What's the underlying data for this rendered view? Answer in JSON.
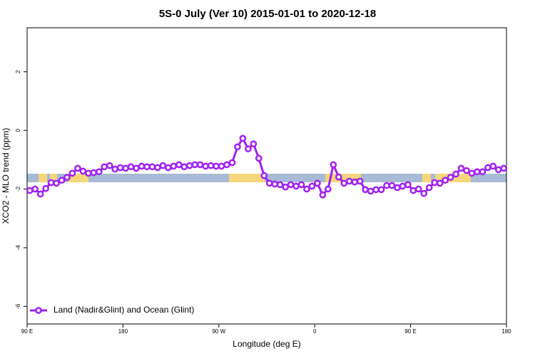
{
  "chart_data": {
    "type": "line",
    "title": "5S-0 July (Ver 10)   2015-01-01 to 2020-12-18",
    "x_label": "Longitude (deg E)",
    "y_label": "XCO2 - MLO trend (ppm)",
    "x": [
      92.5,
      97.5,
      102.5,
      107.5,
      112.5,
      117.5,
      122.5,
      127.5,
      132.5,
      137.5,
      142.5,
      147.5,
      152.5,
      157.5,
      162.5,
      167.5,
      172.5,
      177.5,
      182.5,
      187.5,
      192.5,
      197.5,
      202.5,
      207.5,
      212.5,
      217.5,
      222.5,
      227.5,
      232.5,
      237.5,
      242.5,
      247.5,
      252.5,
      257.5,
      262.5,
      267.5,
      272.5,
      277.5,
      282.5,
      287.5,
      292.5,
      297.5,
      302.5,
      307.5,
      312.5,
      317.5,
      322.5,
      327.5,
      332.5,
      337.5,
      342.5,
      347.5,
      352.5,
      357.5,
      362.5,
      367.5,
      372.5,
      377.5,
      382.5,
      387.5,
      392.5,
      397.5,
      402.5,
      407.5,
      412.5,
      417.5,
      422.5,
      427.5,
      432.5,
      437.5,
      442.5,
      447.5,
      452.5,
      457.5,
      462.5,
      467.5,
      472.5,
      477.5,
      482.5,
      487.5,
      492.5,
      497.5,
      502.5,
      507.5,
      512.5,
      517.5,
      522.5,
      527.5,
      532.5,
      537.5
    ],
    "series": [
      {
        "name": "Land (Nadir&Glint) and Ocean (Glint)",
        "color": "#a020f0",
        "values": [
          -2.05,
          -2.0,
          -2.17,
          -1.98,
          -1.78,
          -1.8,
          -1.7,
          -1.6,
          -1.46,
          -1.29,
          -1.39,
          -1.46,
          -1.44,
          -1.41,
          -1.24,
          -1.2,
          -1.32,
          -1.27,
          -1.29,
          -1.24,
          -1.29,
          -1.22,
          -1.24,
          -1.24,
          -1.27,
          -1.2,
          -1.27,
          -1.22,
          -1.17,
          -1.24,
          -1.2,
          -1.17,
          -1.17,
          -1.22,
          -1.2,
          -1.22,
          -1.22,
          -1.17,
          -1.1,
          -0.56,
          -0.27,
          -0.63,
          -0.46,
          -0.95,
          -1.54,
          -1.8,
          -1.83,
          -1.85,
          -1.93,
          -1.85,
          -1.9,
          -1.85,
          -2.0,
          -1.9,
          -1.8,
          -2.2,
          -2.0,
          -1.17,
          -1.59,
          -1.8,
          -1.73,
          -1.76,
          -1.73,
          -2.02,
          -2.07,
          -2.02,
          -2.02,
          -1.88,
          -1.88,
          -1.95,
          -1.9,
          -1.85,
          -2.05,
          -2.0,
          -2.15,
          -1.95,
          -1.78,
          -1.8,
          -1.7,
          -1.6,
          -1.49,
          -1.29,
          -1.37,
          -1.46,
          -1.41,
          -1.41,
          -1.27,
          -1.22,
          -1.34,
          -1.29
        ]
      }
    ],
    "xlim": [
      90,
      540
    ],
    "xticks": [
      {
        "value": 90,
        "label": "90 E"
      },
      180,
      {
        "value": 270,
        "label": "90 W"
      },
      {
        "value": 360,
        "label": "0"
      },
      {
        "value": 450,
        "label": "90 E"
      },
      180
    ],
    "ylim": [
      -6.6,
      3.5
    ],
    "yticks": [
      -6,
      -4,
      -2,
      0,
      2
    ],
    "legend": "bottom-left"
  }
}
